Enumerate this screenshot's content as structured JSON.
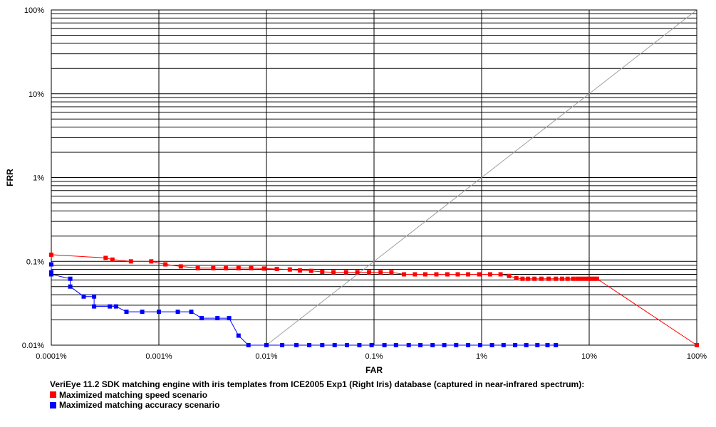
{
  "chart_data": {
    "type": "line",
    "xscale": "log",
    "yscale": "log",
    "xlabel": "FAR",
    "ylabel": "FRR",
    "xlim": [
      0.0001,
      100
    ],
    "ylim": [
      0.01,
      100
    ],
    "xticks": [
      "0.0001%",
      "0.001%",
      "0.01%",
      "0.1%",
      "1%",
      "10%",
      "100%"
    ],
    "yticks": [
      "0.01%",
      "0.1%",
      "1%",
      "10%",
      "100%"
    ],
    "grid": true,
    "diagonal_reference": true,
    "caption": "VeriEye 11.2 SDK matching engine with iris templates from ICE2005 Exp1 (Right Iris) database (captured in near-infrared spectrum):",
    "legend_position": "bottom-left",
    "series": [
      {
        "name": "Maximized matching speed scenario",
        "color": "#ff0000",
        "points": [
          [
            0.0001,
            0.12
          ],
          [
            0.00032,
            0.11
          ],
          [
            0.00037,
            0.105
          ],
          [
            0.00055,
            0.1
          ],
          [
            0.00085,
            0.1
          ],
          [
            0.00115,
            0.092
          ],
          [
            0.0016,
            0.087
          ],
          [
            0.0023,
            0.083
          ],
          [
            0.0032,
            0.083
          ],
          [
            0.0042,
            0.083
          ],
          [
            0.0055,
            0.083
          ],
          [
            0.0072,
            0.083
          ],
          [
            0.0095,
            0.082
          ],
          [
            0.0125,
            0.081
          ],
          [
            0.0165,
            0.08
          ],
          [
            0.0205,
            0.078
          ],
          [
            0.026,
            0.077
          ],
          [
            0.033,
            0.075
          ],
          [
            0.042,
            0.074
          ],
          [
            0.055,
            0.074
          ],
          [
            0.07,
            0.074
          ],
          [
            0.09,
            0.074
          ],
          [
            0.115,
            0.074
          ],
          [
            0.145,
            0.074
          ],
          [
            0.19,
            0.07
          ],
          [
            0.24,
            0.07
          ],
          [
            0.3,
            0.07
          ],
          [
            0.38,
            0.07
          ],
          [
            0.48,
            0.07
          ],
          [
            0.6,
            0.07
          ],
          [
            0.75,
            0.07
          ],
          [
            0.95,
            0.07
          ],
          [
            1.2,
            0.07
          ],
          [
            1.5,
            0.07
          ],
          [
            1.8,
            0.067
          ],
          [
            2.1,
            0.063
          ],
          [
            2.4,
            0.062
          ],
          [
            2.7,
            0.062
          ],
          [
            3.1,
            0.062
          ],
          [
            3.6,
            0.062
          ],
          [
            4.2,
            0.062
          ],
          [
            4.9,
            0.062
          ],
          [
            5.6,
            0.062
          ],
          [
            6.3,
            0.062
          ],
          [
            7.1,
            0.062
          ],
          [
            7.8,
            0.062
          ],
          [
            8.5,
            0.062
          ],
          [
            9.2,
            0.062
          ],
          [
            10,
            0.062
          ],
          [
            10.6,
            0.062
          ],
          [
            11.2,
            0.062
          ],
          [
            11.8,
            0.062
          ],
          [
            100,
            0.01
          ]
        ]
      },
      {
        "name": "Maximized matching accuracy scenario",
        "color": "#0000ff",
        "points": [
          [
            0.0001,
            0.092
          ],
          [
            0.0001,
            0.074
          ],
          [
            0.0001,
            0.07
          ],
          [
            0.00015,
            0.062
          ],
          [
            0.00015,
            0.05
          ],
          [
            0.0002,
            0.038
          ],
          [
            0.00025,
            0.038
          ],
          [
            0.00025,
            0.029
          ],
          [
            0.00035,
            0.029
          ],
          [
            0.0004,
            0.029
          ],
          [
            0.0005,
            0.025
          ],
          [
            0.0007,
            0.025
          ],
          [
            0.001,
            0.025
          ],
          [
            0.0015,
            0.025
          ],
          [
            0.002,
            0.025
          ],
          [
            0.0025,
            0.021
          ],
          [
            0.0035,
            0.021
          ],
          [
            0.0045,
            0.021
          ],
          [
            0.0055,
            0.013
          ],
          [
            0.0068,
            0.01
          ],
          [
            0.01,
            0.01
          ],
          [
            0.014,
            0.01
          ],
          [
            0.019,
            0.01
          ],
          [
            0.025,
            0.01
          ],
          [
            0.033,
            0.01
          ],
          [
            0.043,
            0.01
          ],
          [
            0.056,
            0.01
          ],
          [
            0.073,
            0.01
          ],
          [
            0.095,
            0.01
          ],
          [
            0.125,
            0.01
          ],
          [
            0.16,
            0.01
          ],
          [
            0.21,
            0.01
          ],
          [
            0.27,
            0.01
          ],
          [
            0.35,
            0.01
          ],
          [
            0.45,
            0.01
          ],
          [
            0.58,
            0.01
          ],
          [
            0.75,
            0.01
          ],
          [
            0.97,
            0.01
          ],
          [
            1.25,
            0.01
          ],
          [
            1.6,
            0.01
          ],
          [
            2.05,
            0.01
          ],
          [
            2.6,
            0.01
          ],
          [
            3.3,
            0.01
          ],
          [
            4.1,
            0.01
          ],
          [
            4.9,
            0.01
          ]
        ]
      }
    ]
  }
}
